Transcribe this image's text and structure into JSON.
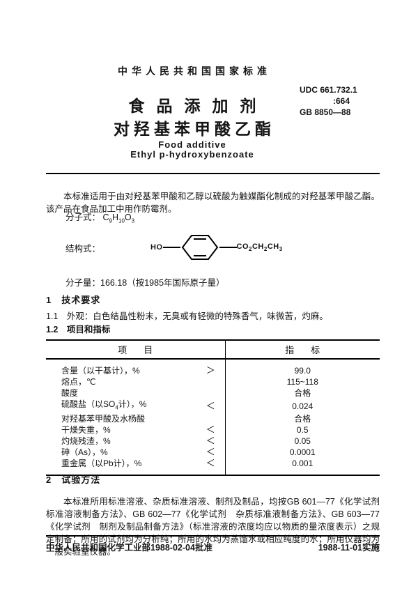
{
  "page": {
    "header": {
      "standard_label": "中华人民共和国国家标准",
      "udc_line1": "UDC 661.732.1",
      "udc_line2": ":664",
      "udc_line3": "GB 8850—88",
      "title_cn_line1": "食品添加剂",
      "title_cn_line2": "对羟基苯甲酸乙酯",
      "title_en_line1": "Food additive",
      "title_en_line2": "Ethyl p-hydroxybenzoate"
    },
    "intro": {
      "scope_paragraph": "本标准适用于由对羟基苯甲酸和乙醇以硫酸为触媒酯化制成的对羟基苯甲酸乙酯。该产品在食品加工中用作防霉剂。",
      "molecular_formula_label": "分子式：",
      "molecular_formula": "C_9H_10O_3",
      "structure_label": "结构式：",
      "structure_left": "HO",
      "structure_right": "CO_2CH_2CH_3",
      "molecular_weight_line": "分子量：166.18（按1985年国际原子量）"
    },
    "section1": {
      "heading": "1　技术要求",
      "item_1_1": "1.1　外观：白色结晶性粉末，无臭或有轻微的特殊香气，味微苦，灼麻。",
      "item_1_2": "1.2　项目和指标"
    },
    "table": {
      "col1_header": "项目",
      "col2_header": "指标",
      "rows": [
        {
          "item": "含量（以干基计），%",
          "relation": "＞",
          "value": "99.0"
        },
        {
          "item": "熔点，℃",
          "relation": "",
          "value": "115~118"
        },
        {
          "item": "酸度",
          "relation": "",
          "value": "合格"
        },
        {
          "item": "硫酸盐（以SO_4计），%",
          "relation": "＜",
          "value": "0.024"
        },
        {
          "item": "对羟基苯甲酸及水杨酸",
          "relation": "",
          "value": "合格"
        },
        {
          "item": "干燥失重，%",
          "relation": "＜",
          "value": "0.5"
        },
        {
          "item": "灼烧残渣，%",
          "relation": "＜",
          "value": "0.05"
        },
        {
          "item": "砷（As），%",
          "relation": "＜",
          "value": "0.0001"
        },
        {
          "item": "重金属（以Pb计），%",
          "relation": "＜",
          "value": "0.001"
        }
      ]
    },
    "section2": {
      "heading": "2　试验方法",
      "paragraph": "本标准所用标准溶液、杂质标准溶液、制剂及制品，均按GB 601—77《化学试剂　标准溶液制备方法》、GB 602—77《化学试剂　杂质标准液制备方法》、GB 603—77《化学试剂　制剂及制品制备方法》（标准溶液的浓度均应以物质的量浓度表示）之规定制备；所用的试剂均为分析纯；所用的水均为蒸馏水或相应纯度的水；所用仪器均为一般实验室仪器。"
    },
    "footer": {
      "left": "中华人民共和国化学工业部1988-02-04批准",
      "right": "1988-11-01实施"
    }
  }
}
